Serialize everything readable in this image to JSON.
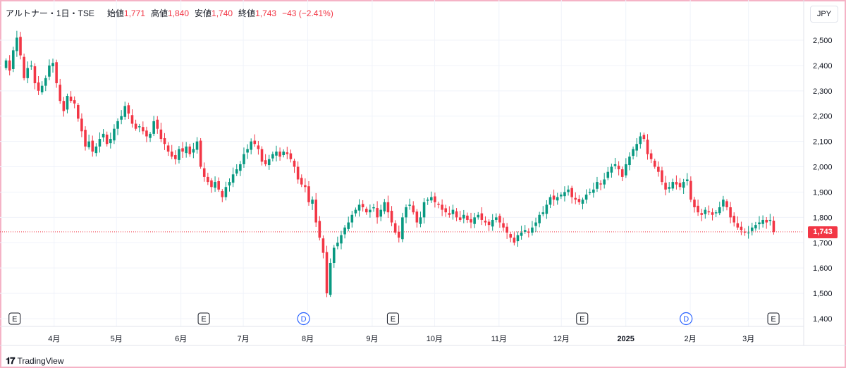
{
  "header": {
    "symbol": "アルトナー・1日・TSE",
    "open_label": "始値",
    "open": "1,771",
    "high_label": "高値",
    "high": "1,840",
    "low_label": "安値",
    "low": "1,740",
    "close_label": "終値",
    "close": "1,743",
    "change": "−43 (−2.41%)"
  },
  "currency_button": "JPY",
  "last_price_label": "1,743",
  "brand": "TradingView",
  "events": [
    {
      "label": "E",
      "kind": "earnings",
      "date": "2024-03-13"
    },
    {
      "label": "E",
      "kind": "earnings",
      "date": "2024-06-12"
    },
    {
      "label": "D",
      "kind": "dividend",
      "date": "2024-07-30"
    },
    {
      "label": "E",
      "kind": "earnings",
      "date": "2024-09-11"
    },
    {
      "label": "E",
      "kind": "earnings",
      "date": "2024-12-11"
    },
    {
      "label": "D",
      "kind": "dividend",
      "date": "2025-01-30"
    },
    {
      "label": "E",
      "kind": "earnings",
      "date": "2025-03-13"
    }
  ],
  "colors": {
    "up": "#089981",
    "down": "#f23645",
    "grid": "#f0f3fa",
    "frame": "#f5b3c6",
    "dividend": "#2962ff"
  },
  "chart_data": {
    "type": "candlestick",
    "title": "アルトナー・1日・TSE",
    "ylabel": "JPY",
    "ylim": [
      1380,
      2560
    ],
    "yticks": [
      "1,400",
      "1,500",
      "1,600",
      "1,700",
      "1,800",
      "1,900",
      "2,000",
      "2,100",
      "2,200",
      "2,300",
      "2,400",
      "2,500"
    ],
    "x_ticks": [
      {
        "label": "4月",
        "date": "2024-04-01"
      },
      {
        "label": "5月",
        "date": "2024-05-01"
      },
      {
        "label": "6月",
        "date": "2024-06-01"
      },
      {
        "label": "7月",
        "date": "2024-07-01"
      },
      {
        "label": "8月",
        "date": "2024-08-01"
      },
      {
        "label": "9月",
        "date": "2024-09-01"
      },
      {
        "label": "10月",
        "date": "2024-10-01"
      },
      {
        "label": "11月",
        "date": "2024-11-01"
      },
      {
        "label": "12月",
        "date": "2024-12-01"
      },
      {
        "label": "2025",
        "date": "2025-01-01"
      },
      {
        "label": "2月",
        "date": "2025-02-01"
      },
      {
        "label": "3月",
        "date": "2025-03-01"
      }
    ],
    "last_price": 1743,
    "closes": [
      2420,
      2380,
      2460,
      2510,
      2440,
      2350,
      2390,
      2400,
      2330,
      2300,
      2320,
      2350,
      2400,
      2410,
      2330,
      2260,
      2220,
      2280,
      2260,
      2250,
      2190,
      2140,
      2080,
      2100,
      2060,
      2080,
      2110,
      2130,
      2090,
      2110,
      2150,
      2180,
      2200,
      2240,
      2210,
      2170,
      2150,
      2160,
      2140,
      2120,
      2130,
      2180,
      2150,
      2110,
      2090,
      2060,
      2040,
      2030,
      2070,
      2060,
      2080,
      2050,
      2070,
      2100,
      2000,
      1960,
      1940,
      1920,
      1940,
      1910,
      1880,
      1920,
      1940,
      1970,
      1990,
      2010,
      2050,
      2070,
      2100,
      2090,
      2070,
      2020,
      2010,
      2030,
      2050,
      2060,
      2040,
      2060,
      2050,
      2030,
      2000,
      1950,
      1930,
      1920,
      1860,
      1870,
      1780,
      1720,
      1660,
      1500,
      1620,
      1680,
      1700,
      1730,
      1760,
      1780,
      1810,
      1830,
      1850,
      1840,
      1820,
      1830,
      1840,
      1800,
      1830,
      1860,
      1820,
      1780,
      1740,
      1720,
      1800,
      1840,
      1850,
      1820,
      1780,
      1800,
      1860,
      1870,
      1880,
      1860,
      1850,
      1830,
      1820,
      1810,
      1830,
      1800,
      1790,
      1810,
      1790,
      1780,
      1800,
      1810,
      1790,
      1780,
      1770,
      1790,
      1800,
      1780,
      1760,
      1740,
      1720,
      1700,
      1730,
      1740,
      1750,
      1740,
      1760,
      1780,
      1810,
      1820,
      1850,
      1880,
      1870,
      1880,
      1890,
      1900,
      1910,
      1880,
      1870,
      1860,
      1870,
      1890,
      1900,
      1910,
      1940,
      1930,
      1950,
      1980,
      2000,
      2010,
      1990,
      1960,
      2010,
      2040,
      2070,
      2090,
      2120,
      2110,
      2050,
      2030,
      2000,
      1980,
      1940,
      1910,
      1920,
      1940,
      1930,
      1920,
      1940,
      1950,
      1870,
      1840,
      1820,
      1810,
      1830,
      1820,
      1810,
      1820,
      1840,
      1870,
      1840,
      1800,
      1780,
      1760,
      1750,
      1740,
      1740,
      1760,
      1770,
      1780,
      1790,
      1780,
      1790,
      1743
    ]
  }
}
